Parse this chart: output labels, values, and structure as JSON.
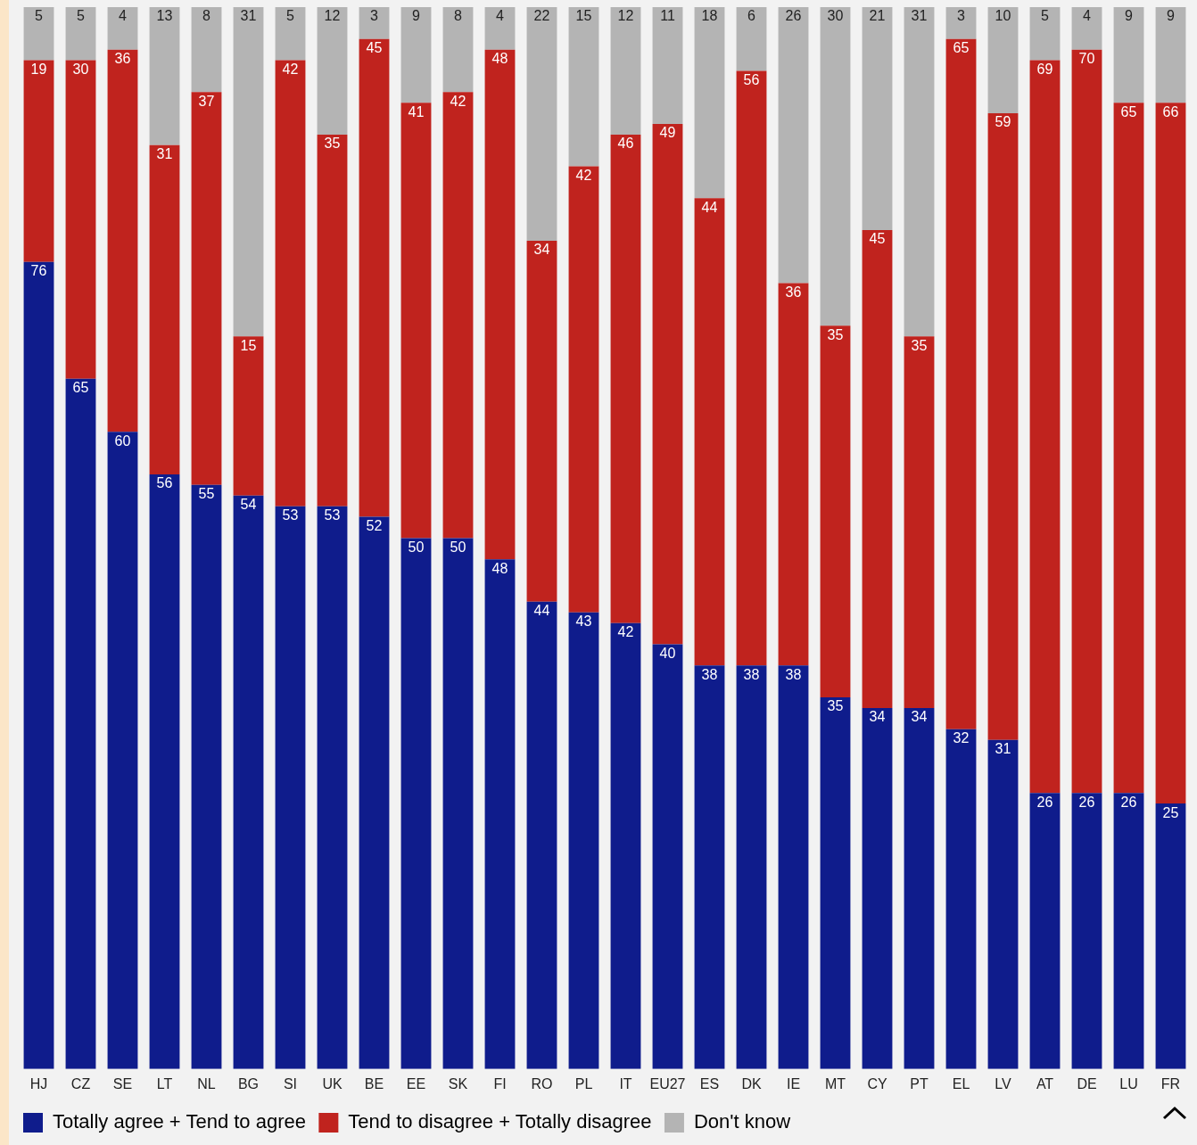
{
  "chart_data": {
    "type": "bar",
    "stacked": true,
    "data_labels": true,
    "legend": "bottom",
    "grid": false,
    "tick_labels": "x",
    "categories": [
      "HJ",
      "CZ",
      "SE",
      "LT",
      "NL",
      "BG",
      "SI",
      "UK",
      "BE",
      "EE",
      "SK",
      "FI",
      "RO",
      "PL",
      "IT",
      "EU27",
      "ES",
      "DK",
      "IE",
      "MT",
      "CY",
      "PT",
      "EL",
      "LV",
      "AT",
      "DE",
      "LU",
      "FR"
    ],
    "series": [
      {
        "name": "Totally agree + Tend to agree",
        "color": "#0f1c8c",
        "values": [
          76,
          65,
          60,
          56,
          55,
          54,
          53,
          53,
          52,
          50,
          50,
          48,
          44,
          43,
          42,
          40,
          38,
          38,
          38,
          35,
          34,
          34,
          32,
          31,
          26,
          26,
          26,
          25
        ]
      },
      {
        "name": "Tend to disagree + Totally disagree",
        "color": "#c0231e",
        "values": [
          19,
          30,
          36,
          31,
          37,
          15,
          42,
          35,
          45,
          41,
          42,
          48,
          34,
          42,
          46,
          49,
          44,
          56,
          36,
          35,
          45,
          35,
          65,
          59,
          69,
          70,
          65,
          66
        ]
      },
      {
        "name": "Don't know",
        "color": "#b4b4b4",
        "values": [
          5,
          5,
          4,
          13,
          8,
          31,
          5,
          12,
          3,
          9,
          8,
          4,
          22,
          15,
          12,
          11,
          18,
          6,
          26,
          30,
          21,
          31,
          3,
          10,
          5,
          4,
          9,
          9
        ]
      }
    ]
  }
}
